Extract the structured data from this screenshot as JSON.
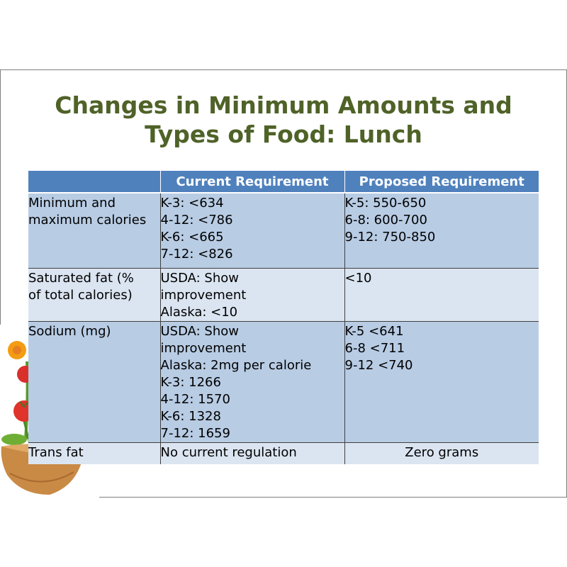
{
  "title": {
    "line1": "Changes in Minimum Amounts and",
    "line2": "Types of Food: Lunch"
  },
  "table": {
    "headers": [
      "",
      "Current Requirement",
      "Proposed Requirement"
    ],
    "rows": [
      {
        "label": [
          "Minimum and",
          "maximum calories"
        ],
        "current": [
          "K-3: <634",
          "4-12: <786",
          "K-6: <665",
          "7-12: <826"
        ],
        "proposed": [
          "K-5: 550-650",
          "6-8: 600-700",
          "9-12: 750-850"
        ]
      },
      {
        "label": [
          "Saturated fat (%",
          "of total calories)"
        ],
        "current": [
          "USDA: Show",
          "improvement",
          "Alaska: <10"
        ],
        "proposed": [
          "<10"
        ]
      },
      {
        "label": [
          "Sodium (mg)"
        ],
        "current": [
          "USDA: Show",
          "improvement",
          "Alaska: 2mg per calorie",
          "K-3: 1266",
          "4-12: 1570",
          "K-6: 1328",
          "7-12: 1659"
        ],
        "proposed": [
          "K-5 <641",
          "6-8 <711",
          "9-12 <740"
        ]
      },
      {
        "label": [
          "Trans fat"
        ],
        "current": [
          "No current regulation"
        ],
        "proposed": [
          "Zero grams"
        ]
      }
    ]
  },
  "colors": {
    "title": "#4f6228",
    "header_bg": "#4f81bd",
    "row_dark": "#b8cce4",
    "row_light": "#dbe5f1"
  },
  "decoration": {
    "icon": "salad-bowl-with-vegetables"
  }
}
